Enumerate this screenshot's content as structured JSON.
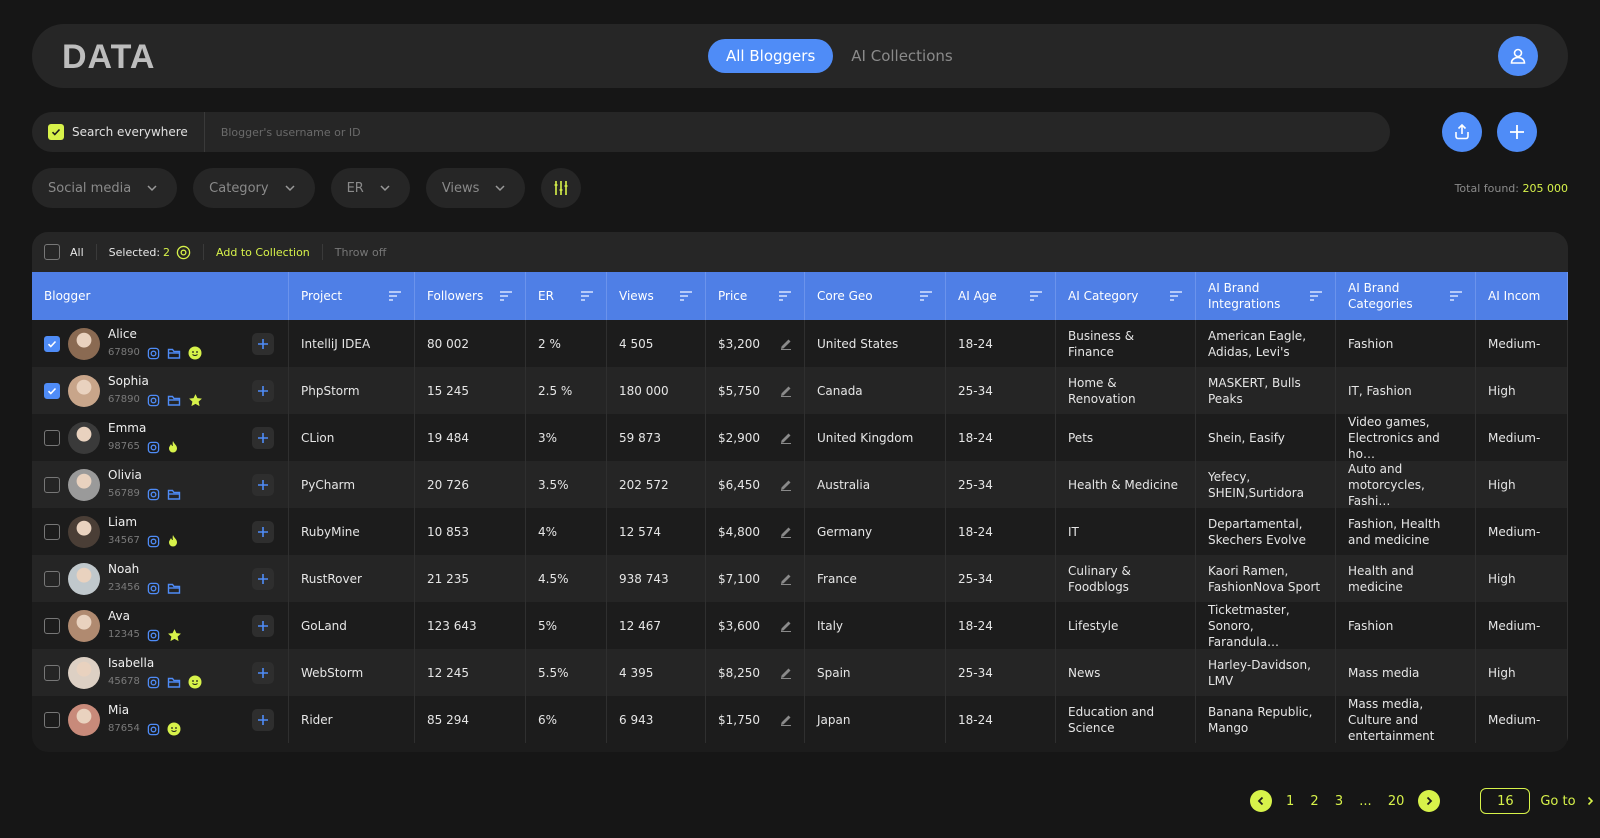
{
  "header": {
    "logo": "DATA",
    "tabs": [
      {
        "label": "All Bloggers",
        "active": true
      },
      {
        "label": "AI Collections",
        "active": false
      }
    ]
  },
  "search": {
    "scope_label": "Search everywhere",
    "placeholder": "Blogger's username or ID",
    "value": ""
  },
  "filters": [
    {
      "label": "Social media"
    },
    {
      "label": "Category"
    },
    {
      "label": "ER"
    },
    {
      "label": "Views"
    }
  ],
  "total": {
    "label": "Total found:",
    "value": "205 000"
  },
  "toolbar": {
    "all_label": "All",
    "selected_label": "Selected: ",
    "selected_count": "2",
    "add_label": "Add to Collection",
    "throw_label": "Throw off"
  },
  "columns": [
    {
      "label": "Blogger"
    },
    {
      "label": "Project"
    },
    {
      "label": "Followers"
    },
    {
      "label": "ER"
    },
    {
      "label": "Views"
    },
    {
      "label": "Price"
    },
    {
      "label": "Core Geo"
    },
    {
      "label": "AI Age"
    },
    {
      "label": "AI Category"
    },
    {
      "label": "AI Brand Integrations"
    },
    {
      "label": "AI Brand Categories"
    },
    {
      "label": "AI Incom"
    }
  ],
  "rows": [
    {
      "checked": true,
      "name": "Alice",
      "id": "67890",
      "badges": [
        "instagram",
        "folder",
        "smile"
      ],
      "avatar_color": "#8a6a52",
      "project": "IntelliJ IDEA",
      "followers": "80 002",
      "er": "2 %",
      "views": "4 505",
      "price": "$3,200",
      "geo": "United States",
      "age": "18-24",
      "category": "Business & Finance",
      "brands": "American Eagle, Adidas, Levi's",
      "brand_categories": "Fashion",
      "income": "Medium-"
    },
    {
      "checked": true,
      "name": "Sophia",
      "id": "67890",
      "badges": [
        "instagram",
        "folder",
        "star"
      ],
      "avatar_color": "#c8a58a",
      "project": "PhpStorm",
      "followers": "15 245",
      "er": "2.5 %",
      "views": "180 000",
      "price": "$5,750",
      "geo": "Canada",
      "age": "25-34",
      "category": "Home & Renovation",
      "brands": "MASKERT, Bulls Peaks",
      "brand_categories": "IT, Fashion",
      "income": "High"
    },
    {
      "checked": false,
      "name": "Emma",
      "id": "98765",
      "badges": [
        "instagram",
        "fire"
      ],
      "avatar_color": "#3a3a3a",
      "project": "CLion",
      "followers": "19 484",
      "er": "3%",
      "views": "59 873",
      "price": "$2,900",
      "geo": "United Kingdom",
      "age": "18-24",
      "category": "Pets",
      "brands": "Shein, Easify",
      "brand_categories": "Video games, Electronics and ho…",
      "income": "Medium-"
    },
    {
      "checked": false,
      "name": "Olivia",
      "id": "56789",
      "badges": [
        "instagram",
        "folder"
      ],
      "avatar_color": "#9a9a9a",
      "project": "PyCharm",
      "followers": "20 726",
      "er": "3.5%",
      "views": "202 572",
      "price": "$6,450",
      "geo": "Australia",
      "age": "25-34",
      "category": "Health & Medicine",
      "brands": "Yefecy, SHEIN,Surtidora",
      "brand_categories": "Auto and motorcycles, Fashi…",
      "income": "High"
    },
    {
      "checked": false,
      "name": "Liam",
      "id": "34567",
      "badges": [
        "instagram",
        "fire"
      ],
      "avatar_color": "#4a3e36",
      "project": "RubyMine",
      "followers": "10 853",
      "er": "4%",
      "views": "12 574",
      "price": "$4,800",
      "geo": "Germany",
      "age": "18-24",
      "category": "IT",
      "brands": "Departamental, Skechers Evolve",
      "brand_categories": "Fashion, Health and medicine",
      "income": "Medium-"
    },
    {
      "checked": false,
      "name": "Noah",
      "id": "23456",
      "badges": [
        "instagram",
        "folder"
      ],
      "avatar_color": "#c0c8cc",
      "project": "RustRover",
      "followers": "21 235",
      "er": "4.5%",
      "views": "938 743",
      "price": "$7,100",
      "geo": "France",
      "age": "25-34",
      "category": "Culinary & Foodblogs",
      "brands": "Kaori Ramen, FashionNova Sport",
      "brand_categories": "Health and medicine",
      "income": "High"
    },
    {
      "checked": false,
      "name": "Ava",
      "id": "12345",
      "badges": [
        "instagram",
        "star"
      ],
      "avatar_color": "#b08a70",
      "project": "GoLand",
      "followers": "123 643",
      "er": "5%",
      "views": "12 467",
      "price": "$3,600",
      "geo": "Italy",
      "age": "18-24",
      "category": "Lifestyle",
      "brands": "Ticketmaster, Sonoro, Farandula…",
      "brand_categories": "Fashion",
      "income": "Medium-"
    },
    {
      "checked": false,
      "name": "Isabella",
      "id": "45678",
      "badges": [
        "instagram",
        "folder",
        "smile"
      ],
      "avatar_color": "#ddd0c4",
      "project": "WebStorm",
      "followers": "12 245",
      "er": "5.5%",
      "views": "4 395",
      "price": "$8,250",
      "geo": "Spain",
      "age": "25-34",
      "category": "News",
      "brands": "Harley-Davidson, LMV",
      "brand_categories": "Mass media",
      "income": "High"
    },
    {
      "checked": false,
      "name": "Mia",
      "id": "87654",
      "badges": [
        "instagram",
        "smile"
      ],
      "avatar_color": "#c88a7a",
      "project": "Rider",
      "followers": "85 294",
      "er": "6%",
      "views": "6 943",
      "price": "$1,750",
      "geo": "Japan",
      "age": "18-24",
      "category": "Education and Science",
      "brands": "Banana Republic, Mango",
      "brand_categories": "Mass media, Culture and entertainment",
      "income": "Medium-"
    }
  ],
  "pagination": {
    "pages": [
      "1",
      "2",
      "3",
      "...",
      "20"
    ],
    "goto_value": "16",
    "goto_label": "Go to"
  },
  "colors": {
    "accent": "#4f8cf7",
    "lime": "#d7f24a",
    "header_row": "#4f7fe6"
  },
  "icons": {
    "user": "user-icon",
    "upload": "upload-icon",
    "add": "plus-icon",
    "settings": "sliders-icon",
    "eye": "eye-icon"
  }
}
